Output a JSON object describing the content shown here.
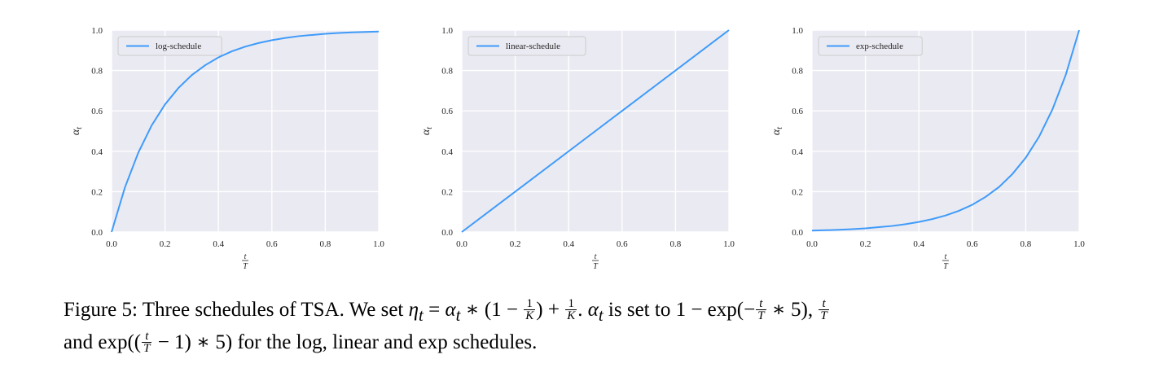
{
  "chart_data": [
    {
      "type": "line",
      "xlabel": "t/T",
      "ylabel": "α_t",
      "xlim": [
        0,
        1
      ],
      "ylim": [
        0,
        1
      ],
      "xticks": [
        "0.0",
        "0.2",
        "0.4",
        "0.6",
        "0.8",
        "1.0"
      ],
      "yticks": [
        "0.0",
        "0.2",
        "0.4",
        "0.6",
        "0.8",
        "1.0"
      ],
      "grid": true,
      "legend": "top-left",
      "series": [
        {
          "name": "log-schedule",
          "color": "#3f9bfa",
          "x": [
            0,
            0.05,
            0.1,
            0.15,
            0.2,
            0.25,
            0.3,
            0.35,
            0.4,
            0.45,
            0.5,
            0.55,
            0.6,
            0.65,
            0.7,
            0.75,
            0.8,
            0.85,
            0.9,
            0.95,
            1.0
          ],
          "y": [
            0,
            0.221,
            0.393,
            0.528,
            0.632,
            0.713,
            0.777,
            0.826,
            0.865,
            0.895,
            0.918,
            0.936,
            0.95,
            0.961,
            0.97,
            0.976,
            0.982,
            0.986,
            0.989,
            0.991,
            0.993
          ]
        }
      ]
    },
    {
      "type": "line",
      "xlabel": "t/T",
      "ylabel": "α_t",
      "xlim": [
        0,
        1
      ],
      "ylim": [
        0,
        1
      ],
      "xticks": [
        "0.0",
        "0.2",
        "0.4",
        "0.6",
        "0.8",
        "1.0"
      ],
      "yticks": [
        "0.0",
        "0.2",
        "0.4",
        "0.6",
        "0.8",
        "1.0"
      ],
      "grid": true,
      "legend": "top-left",
      "series": [
        {
          "name": "linear-schedule",
          "color": "#3f9bfa",
          "x": [
            0,
            0.5,
            1.0
          ],
          "y": [
            0,
            0.5,
            1.0
          ]
        }
      ]
    },
    {
      "type": "line",
      "xlabel": "t/T",
      "ylabel": "α_t",
      "xlim": [
        0,
        1
      ],
      "ylim": [
        0,
        1
      ],
      "xticks": [
        "0.0",
        "0.2",
        "0.4",
        "0.6",
        "0.8",
        "1.0"
      ],
      "yticks": [
        "0.0",
        "0.2",
        "0.4",
        "0.6",
        "0.8",
        "1.0"
      ],
      "grid": true,
      "legend": "top-left",
      "series": [
        {
          "name": "exp-schedule",
          "color": "#3f9bfa",
          "x": [
            0,
            0.05,
            0.1,
            0.15,
            0.2,
            0.25,
            0.3,
            0.35,
            0.4,
            0.45,
            0.5,
            0.55,
            0.6,
            0.65,
            0.7,
            0.75,
            0.8,
            0.85,
            0.9,
            0.95,
            1.0
          ],
          "y": [
            0.007,
            0.009,
            0.011,
            0.014,
            0.018,
            0.024,
            0.03,
            0.039,
            0.05,
            0.064,
            0.082,
            0.105,
            0.135,
            0.174,
            0.223,
            0.287,
            0.368,
            0.472,
            0.607,
            0.779,
            1.0
          ]
        }
      ]
    }
  ],
  "caption": {
    "figure_label": "Figure 5:",
    "text_1": "Three schedules of TSA. We set",
    "text_2": "is set to",
    "text_3": "and",
    "text_4": "for the log, linear and exp schedules."
  }
}
